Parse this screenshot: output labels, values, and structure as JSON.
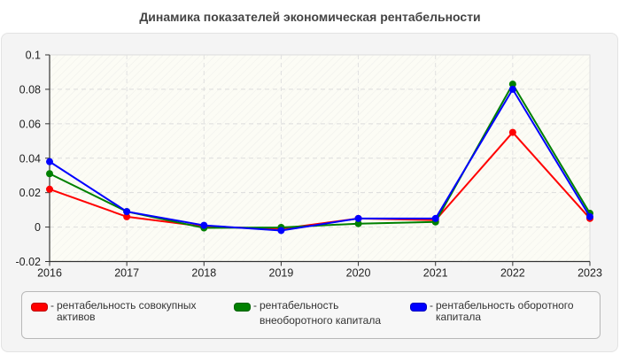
{
  "title": "Динамика показателей экономическая рентабельности",
  "chart_data": {
    "type": "line",
    "title": "Динамика показателей экономическая рентабельности",
    "xlabel": "",
    "ylabel": "",
    "categories": [
      "2016",
      "2017",
      "2018",
      "2019",
      "2020",
      "2021",
      "2022",
      "2023"
    ],
    "ylim": [
      -0.02,
      0.1
    ],
    "yticks": [
      -0.02,
      0,
      0.02,
      0.04,
      0.06,
      0.08,
      0.1
    ],
    "ytick_labels": [
      "-0.02",
      "0",
      "0.02",
      "0.04",
      "0.06",
      "0.08",
      "0.1"
    ],
    "grid": true,
    "legend_position": "bottom",
    "series": [
      {
        "name": "рентабельность совокупных активов",
        "color": "#ff0000",
        "values": [
          0.022,
          0.006,
          0.0003,
          -0.001,
          0.005,
          0.004,
          0.055,
          0.005
        ]
      },
      {
        "name": "рентабельность внеоборотного капитала",
        "color": "#008000",
        "values": [
          0.031,
          0.009,
          -0.0005,
          -0.0002,
          0.002,
          0.003,
          0.083,
          0.008
        ]
      },
      {
        "name": "рентабельность оборотного капитала",
        "color": "#0000ff",
        "values": [
          0.038,
          0.009,
          0.001,
          -0.002,
          0.005,
          0.005,
          0.08,
          0.006
        ]
      }
    ]
  },
  "legend": {
    "items": [
      {
        "label": "рентабельность совокупных\nактивов",
        "color": "#ff0000"
      },
      {
        "label": "рентабельность\nвнеоборотного капитала",
        "color": "#008000"
      },
      {
        "label": "рентабельность оборотного\nкапитала",
        "color": "#0000ff"
      }
    ],
    "separator": "-"
  }
}
